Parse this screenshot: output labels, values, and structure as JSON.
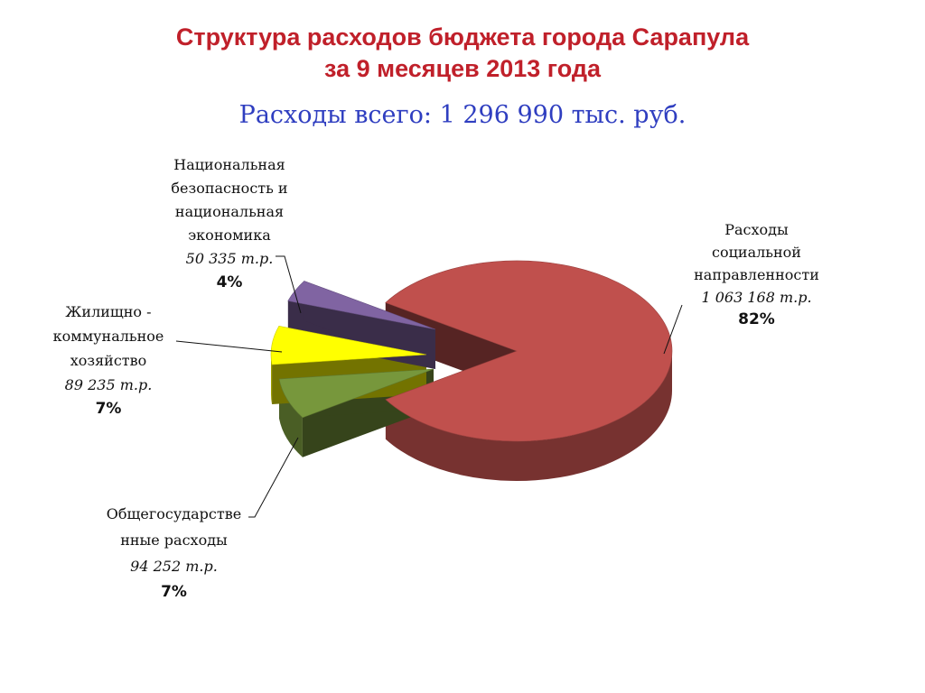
{
  "title": {
    "line1": "Структура расходов бюджета города Сарапула",
    "line2": "за 9 месяцев 2013 года"
  },
  "subtitle": "Расходы всего: 1 296 990 тыс. руб.",
  "colors": {
    "title": "#c0202a",
    "subtitle": "#2f3ec0",
    "social": "#c0504d",
    "general": "#77973c",
    "housing": "#ffff00",
    "security": "#8064a2"
  },
  "chart_data": {
    "type": "pie",
    "title": "Структура расходов бюджета города Сарапула за 9 месяцев 2013 года",
    "total": "Расходы всего: 1 296 990 тыс. руб.",
    "series": [
      {
        "label_lines": [
          "Расходы",
          "социальной",
          "направленности"
        ],
        "amount": "1 063 168 т.р.",
        "value": 1063168,
        "percent": "82%"
      },
      {
        "label_lines": [
          "Общегосударстве",
          "нные расходы"
        ],
        "amount": "94 252 т.р.",
        "value": 94252,
        "percent": "7%"
      },
      {
        "label_lines": [
          "Жилищно -",
          "коммунальное",
          "хозяйство"
        ],
        "amount": "89 235 т.р.",
        "value": 89235,
        "percent": "7%"
      },
      {
        "label_lines": [
          "Национальная",
          "безопасность и",
          "национальная",
          "экономика"
        ],
        "amount": "50 335 т.р.",
        "value": 50335,
        "percent": "4%"
      }
    ]
  }
}
